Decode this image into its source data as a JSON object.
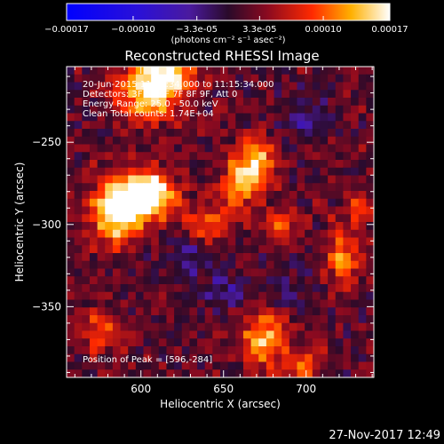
{
  "colorbar": {
    "tick_values": [
      -0.00017,
      -0.0001,
      -3.3e-05,
      3.3e-05,
      0.0001,
      0.00017
    ],
    "tick_labels": [
      "-0.00017",
      "-0.00010",
      "-3.3e-05",
      "3.3e-05",
      "0.00010",
      "0.00017"
    ],
    "unit_text": "(photons cm⁻² s⁻¹ asec⁻²)"
  },
  "chart_data": {
    "type": "heatmap",
    "title": "Reconstructed RHESSI Image",
    "xlabel": "Heliocentric X (arcsec)",
    "ylabel": "Heliocentric Y (arcsec)",
    "xlim": [
      555,
      741
    ],
    "ylim": [
      -393,
      -204
    ],
    "xticks": [
      600,
      650,
      700
    ],
    "yticks": [
      -250,
      -300,
      -350
    ],
    "zlim": [
      -0.00017,
      0.00017
    ],
    "colormap": "blue-purple-red-yellow-white",
    "annotations": [
      "20-Jun-2015 11:05:34.000 to 11:15:34.000",
      "Detectors: 3F 5F 6F 7F 8F 9F, Att 0",
      "Energy Range: 25.0 - 50.0 keV",
      "Clean    Total counts: 1.74E+04"
    ],
    "peak_label": "Position of Peak = [596,-284]",
    "peak": [
      596,
      -284
    ],
    "grid_cols": 40,
    "grid_rows": 40,
    "sources": [
      {
        "x": 596,
        "y": -284,
        "amp": 0.00017,
        "sx": 11,
        "sy": 11
      },
      {
        "x": 583,
        "y": -296,
        "amp": 0.00012,
        "sx": 10,
        "sy": 14
      },
      {
        "x": 610,
        "y": -280,
        "amp": 0.0001,
        "sx": 9,
        "sy": 10
      },
      {
        "x": 604,
        "y": -220,
        "amp": 0.00012,
        "sx": 14,
        "sy": 12
      },
      {
        "x": 615,
        "y": -210,
        "amp": 0.00011,
        "sx": 12,
        "sy": 9
      },
      {
        "x": 668,
        "y": -262,
        "amp": 0.00013,
        "sx": 9,
        "sy": 10
      },
      {
        "x": 660,
        "y": -278,
        "amp": 9e-05,
        "sx": 9,
        "sy": 9
      },
      {
        "x": 640,
        "y": -300,
        "amp": 9e-05,
        "sx": 9,
        "sy": 8
      },
      {
        "x": 685,
        "y": -300,
        "amp": 7e-05,
        "sx": 7,
        "sy": 7
      },
      {
        "x": 675,
        "y": -370,
        "amp": 0.00012,
        "sx": 9,
        "sy": 12
      },
      {
        "x": 700,
        "y": -385,
        "amp": 8e-05,
        "sx": 8,
        "sy": 8
      },
      {
        "x": 722,
        "y": -320,
        "amp": 9e-05,
        "sx": 7,
        "sy": 14
      },
      {
        "x": 732,
        "y": -290,
        "amp": 6e-05,
        "sx": 6,
        "sy": 8
      },
      {
        "x": 575,
        "y": -365,
        "amp": 7e-05,
        "sx": 9,
        "sy": 9
      },
      {
        "x": 650,
        "y": -340,
        "amp": -5e-05,
        "sx": 10,
        "sy": 8
      },
      {
        "x": 630,
        "y": -320,
        "amp": -6e-05,
        "sx": 9,
        "sy": 8
      },
      {
        "x": 700,
        "y": -235,
        "amp": -5e-05,
        "sx": 10,
        "sy": 9
      },
      {
        "x": 690,
        "y": -340,
        "amp": -4e-05,
        "sx": 9,
        "sy": 9
      }
    ]
  },
  "footer": {
    "date_stamp": "27-Nov-2017 12:49"
  }
}
